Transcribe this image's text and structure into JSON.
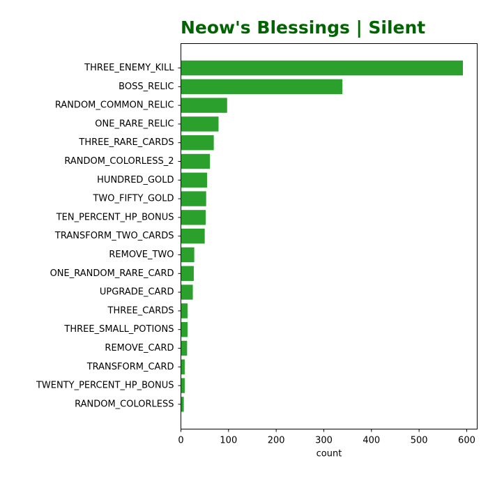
{
  "chart_data": {
    "type": "bar",
    "orientation": "horizontal",
    "title": "Neow's Blessings | Silent",
    "title_color": "#006400",
    "bar_color": "#2ca02c",
    "xlabel": "count",
    "ylabel": "",
    "xlim": [
      0,
      622
    ],
    "xticks": [
      0,
      100,
      200,
      300,
      400,
      500,
      600
    ],
    "grid": false,
    "categories": [
      "THREE_ENEMY_KILL",
      "BOSS_RELIC",
      "RANDOM_COMMON_RELIC",
      "ONE_RARE_RELIC",
      "THREE_RARE_CARDS",
      "RANDOM_COLORLESS_2",
      "HUNDRED_GOLD",
      "TWO_FIFTY_GOLD",
      "TEN_PERCENT_HP_BONUS",
      "TRANSFORM_TWO_CARDS",
      "REMOVE_TWO",
      "ONE_RANDOM_RARE_CARD",
      "UPGRADE_CARD",
      "THREE_CARDS",
      "THREE_SMALL_POTIONS",
      "REMOVE_CARD",
      "TRANSFORM_CARD",
      "TWENTY_PERCENT_HP_BONUS",
      "RANDOM_COLORLESS"
    ],
    "values": [
      592,
      339,
      97,
      79,
      69,
      61,
      55,
      53,
      52,
      50,
      28,
      27,
      25,
      14,
      14,
      13,
      8,
      8,
      6
    ]
  }
}
